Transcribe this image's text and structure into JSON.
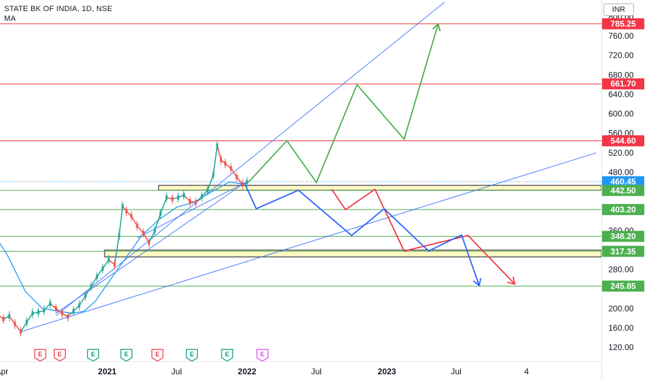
{
  "header": {
    "title": "STATE BK OF INDIA, 1D, NSE",
    "indicator": "MA"
  },
  "axis": {
    "currency": "INR"
  },
  "colors": {
    "red": "#f23645",
    "green": "#4caf50",
    "blue": "#2962ff",
    "zone_fill": "#fff9c4",
    "ma": "#2196f3",
    "dark_blue": "#0d47a1"
  },
  "chart_data": {
    "type": "line",
    "title": "STATE BK OF INDIA, 1D, NSE",
    "ylim": [
      100,
      820
    ],
    "y_scale": "linear",
    "y_ticks": [
      800,
      760,
      720,
      680,
      640,
      600,
      560,
      520,
      480,
      440,
      400,
      360,
      320,
      280,
      240,
      200,
      160,
      120
    ],
    "x_ticks": [
      {
        "label": "Apr",
        "date": "2020-04-01",
        "bold": false
      },
      {
        "label": "2021",
        "date": "2021-01-01",
        "bold": true
      },
      {
        "label": "Jul",
        "date": "2021-07-01",
        "bold": false
      },
      {
        "label": "2022",
        "date": "2022-01-01",
        "bold": true
      },
      {
        "label": "Jul",
        "date": "2022-07-01",
        "bold": false
      },
      {
        "label": "2023",
        "date": "2023-01-01",
        "bold": true
      },
      {
        "label": "Jul",
        "date": "2023-07-01",
        "bold": false
      },
      {
        "label": "4",
        "date": "2024-01-01",
        "bold": false
      }
    ],
    "price": {
      "name": "Close",
      "points": [
        [
          "2020-03-05",
          180
        ],
        [
          "2020-03-20",
          188
        ],
        [
          "2020-04-05",
          178
        ],
        [
          "2020-04-20",
          184
        ],
        [
          "2020-05-05",
          168
        ],
        [
          "2020-05-20",
          152
        ],
        [
          "2020-06-05",
          172
        ],
        [
          "2020-06-20",
          190
        ],
        [
          "2020-07-05",
          192
        ],
        [
          "2020-07-20",
          196
        ],
        [
          "2020-08-05",
          210
        ],
        [
          "2020-08-20",
          200
        ],
        [
          "2020-09-05",
          190
        ],
        [
          "2020-09-20",
          183
        ],
        [
          "2020-10-05",
          195
        ],
        [
          "2020-10-20",
          206
        ],
        [
          "2020-11-05",
          226
        ],
        [
          "2020-11-20",
          245
        ],
        [
          "2020-12-05",
          265
        ],
        [
          "2020-12-20",
          282
        ],
        [
          "2021-01-05",
          300
        ],
        [
          "2021-01-20",
          290
        ],
        [
          "2021-02-01",
          350
        ],
        [
          "2021-02-10",
          410
        ],
        [
          "2021-02-20",
          400
        ],
        [
          "2021-03-05",
          390
        ],
        [
          "2021-03-20",
          370
        ],
        [
          "2021-04-05",
          355
        ],
        [
          "2021-04-20",
          335
        ],
        [
          "2021-05-05",
          360
        ],
        [
          "2021-05-20",
          395
        ],
        [
          "2021-06-05",
          428
        ],
        [
          "2021-06-20",
          425
        ],
        [
          "2021-07-05",
          428
        ],
        [
          "2021-07-20",
          433
        ],
        [
          "2021-08-05",
          420
        ],
        [
          "2021-08-20",
          418
        ],
        [
          "2021-09-05",
          430
        ],
        [
          "2021-09-20",
          443
        ],
        [
          "2021-10-05",
          475
        ],
        [
          "2021-10-15",
          535
        ],
        [
          "2021-10-25",
          505
        ],
        [
          "2021-11-05",
          498
        ],
        [
          "2021-11-20",
          488
        ],
        [
          "2021-12-05",
          470
        ],
        [
          "2021-12-20",
          455
        ],
        [
          "2022-01-01",
          460
        ]
      ]
    },
    "moving_average": {
      "name": "MA",
      "points": [
        [
          "2020-03-05",
          360
        ],
        [
          "2020-04-15",
          310
        ],
        [
          "2020-06-01",
          235
        ],
        [
          "2020-07-15",
          200
        ],
        [
          "2020-08-15",
          196
        ],
        [
          "2020-10-01",
          190
        ],
        [
          "2020-11-01",
          194
        ],
        [
          "2020-12-01",
          215
        ],
        [
          "2021-01-01",
          250
        ],
        [
          "2021-02-15",
          300
        ],
        [
          "2021-04-01",
          350
        ],
        [
          "2021-05-15",
          382
        ],
        [
          "2021-07-01",
          408
        ],
        [
          "2021-08-15",
          418
        ],
        [
          "2021-10-01",
          440
        ],
        [
          "2021-11-15",
          460
        ],
        [
          "2021-12-20",
          456
        ]
      ]
    },
    "horizontal_levels": [
      {
        "value": 785.25,
        "label": "785.25",
        "color": "red"
      },
      {
        "value": 661.7,
        "label": "661.70",
        "color": "red"
      },
      {
        "value": 544.6,
        "label": "544.60",
        "color": "red"
      },
      {
        "value": 460.45,
        "label": "460.45",
        "color": "ma",
        "style": "dotted"
      },
      {
        "value": 442.5,
        "label": "442.50",
        "color": "green"
      },
      {
        "value": 403.2,
        "label": "403.20",
        "color": "green"
      },
      {
        "value": 348.2,
        "label": "348.20",
        "color": "green"
      },
      {
        "value": 317.35,
        "label": "317.35",
        "color": "green"
      },
      {
        "value": 245.85,
        "label": "245.85",
        "color": "green"
      }
    ],
    "zones": [
      {
        "from_date": "2021-05-15",
        "top": 453,
        "bottom": 443
      },
      {
        "from_date": "2020-12-25",
        "top": 320,
        "bottom": 306
      }
    ],
    "trendlines": [
      {
        "from": [
          "2020-05-20",
          152
        ],
        "to": [
          "2024-07-01",
          520
        ],
        "color": "blue"
      },
      {
        "from": [
          "2020-08-20",
          185
        ],
        "to": [
          "2023-06-01",
          830
        ],
        "color": "blue"
      },
      {
        "from": [
          "2020-08-20",
          190
        ],
        "to": [
          "2021-12-20",
          455
        ],
        "color": "blue"
      },
      {
        "from": [
          "2021-03-20",
          345
        ],
        "to": [
          "2021-12-25",
          458
        ],
        "color": "blue"
      }
    ],
    "projections": [
      {
        "name": "bullish path",
        "color": "green",
        "arrow": true,
        "points": [
          [
            "2022-01-05",
            460
          ],
          [
            "2022-04-15",
            545
          ],
          [
            "2022-07-01",
            459
          ],
          [
            "2022-10-15",
            660
          ],
          [
            "2023-02-15",
            548
          ],
          [
            "2023-05-15",
            785
          ]
        ]
      },
      {
        "name": "red path",
        "color": "red",
        "arrow": true,
        "points": [
          [
            "2022-08-10",
            445
          ],
          [
            "2022-09-15",
            403
          ],
          [
            "2022-12-01",
            445
          ],
          [
            "2023-02-15",
            318
          ],
          [
            "2023-08-01",
            350
          ],
          [
            "2023-12-01",
            250
          ]
        ]
      },
      {
        "name": "blue path",
        "color": "blue",
        "arrow": true,
        "points": [
          [
            "2021-12-25",
            458
          ],
          [
            "2022-01-25",
            405
          ],
          [
            "2022-05-15",
            443
          ],
          [
            "2022-10-01",
            350
          ],
          [
            "2022-12-25",
            405
          ],
          [
            "2023-04-20",
            318
          ],
          [
            "2023-07-15",
            351
          ],
          [
            "2023-08-30",
            247
          ]
        ]
      }
    ],
    "event_markers": [
      {
        "date": "2020-07-10",
        "letter": "E",
        "color": "red",
        "fill": "#ffffff"
      },
      {
        "date": "2020-08-30",
        "letter": "E",
        "color": "red",
        "fill": "#ffffff"
      },
      {
        "date": "2020-11-25",
        "letter": "E",
        "color": "green",
        "fill": "#ffffff"
      },
      {
        "date": "2021-02-20",
        "letter": "E",
        "color": "green",
        "fill": "#ffffff"
      },
      {
        "date": "2021-05-12",
        "letter": "E",
        "color": "red",
        "fill": "#ffffff"
      },
      {
        "date": "2021-08-10",
        "letter": "E",
        "color": "green",
        "fill": "#ffffff"
      },
      {
        "date": "2021-11-10",
        "letter": "E",
        "color": "green",
        "fill": "#ffffff"
      },
      {
        "date": "2022-02-10",
        "letter": "E",
        "color": "purple",
        "fill": "#ffffff"
      }
    ]
  }
}
